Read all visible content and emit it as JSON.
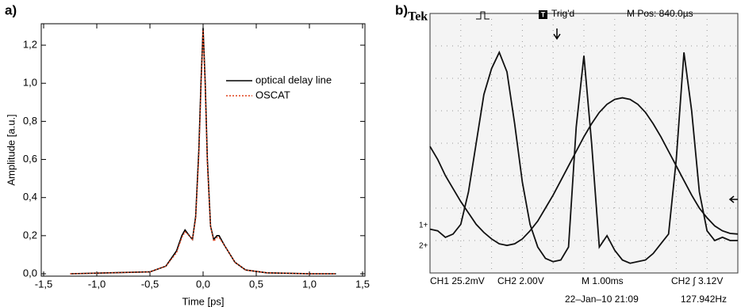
{
  "chart_data": [
    {
      "type": "line",
      "panel_label": "a)",
      "xlabel": "Time [ps]",
      "ylabel": "Amplitude [a.u.]",
      "xlim": [
        -1.5,
        1.5
      ],
      "ylim": [
        0,
        1.3
      ],
      "xticks": [
        {
          "value": -1.5,
          "label": "-1,5"
        },
        {
          "value": -1.0,
          "label": "-1,0"
        },
        {
          "value": -0.5,
          "label": "-0,5"
        },
        {
          "value": 0,
          "label": "0,0"
        },
        {
          "value": 0.5,
          "label": "0,5"
        },
        {
          "value": 1.0,
          "label": "1,0"
        },
        {
          "value": 1.5,
          "label": "1,5"
        }
      ],
      "yticks": [
        {
          "value": 0,
          "label": "0,0"
        },
        {
          "value": 0.2,
          "label": "0,2"
        },
        {
          "value": 0.4,
          "label": "0,4"
        },
        {
          "value": 0.6,
          "label": "0,6"
        },
        {
          "value": 0.8,
          "label": "0,8"
        },
        {
          "value": 1.0,
          "label": "1,0"
        },
        {
          "value": 1.2,
          "label": "1,2"
        }
      ],
      "legend": "upper right",
      "grid": false,
      "x": [
        -1.25,
        -0.5,
        -0.35,
        -0.25,
        -0.2,
        -0.17,
        -0.13,
        -0.1,
        -0.07,
        -0.04,
        -0.02,
        0,
        0.02,
        0.04,
        0.07,
        0.1,
        0.13,
        0.15,
        0.2,
        0.3,
        0.4,
        0.6,
        1.0,
        1.25
      ],
      "series": [
        {
          "name": "optical delay line",
          "color": "#000000",
          "style": "solid",
          "values": [
            0,
            0.01,
            0.04,
            0.12,
            0.2,
            0.23,
            0.2,
            0.18,
            0.3,
            0.65,
            1.0,
            1.29,
            1.0,
            0.6,
            0.25,
            0.18,
            0.2,
            0.2,
            0.15,
            0.06,
            0.02,
            0.005,
            0,
            0
          ]
        },
        {
          "name": "OSCAT",
          "color": "#e0401a",
          "style": "dotted",
          "values": [
            0,
            0.01,
            0.04,
            0.11,
            0.19,
            0.22,
            0.2,
            0.18,
            0.29,
            0.62,
            0.97,
            1.28,
            0.98,
            0.58,
            0.25,
            0.17,
            0.19,
            0.19,
            0.15,
            0.06,
            0.02,
            0.005,
            0,
            0
          ]
        }
      ]
    },
    {
      "type": "scope",
      "panel_label": "b)",
      "header": {
        "brand": "Tek",
        "trigger": "Trig'd",
        "position": "M Pos: 840.0µs"
      },
      "footer": [
        "CH1 25.2mV",
        "CH2 2.00V",
        "M 1.00ms",
        "CH2 ∫ 3.12V",
        "22–Jan–10 21:09",
        "127.942Hz"
      ],
      "channel_markers": [
        "1+",
        "2+"
      ],
      "xlim": [
        0,
        10
      ],
      "ylim": [
        0,
        8
      ],
      "grid": true,
      "x": [
        0,
        0.25,
        0.5,
        0.75,
        1,
        1.25,
        1.5,
        1.75,
        2,
        2.25,
        2.5,
        2.75,
        3,
        3.25,
        3.5,
        3.75,
        4,
        4.25,
        4.5,
        4.75,
        5,
        5.25,
        5.5,
        5.75,
        6,
        6.25,
        6.5,
        6.75,
        7,
        7.25,
        7.5,
        7.75,
        8,
        8.25,
        8.5,
        8.75,
        9,
        9.25,
        9.5,
        9.75,
        10
      ],
      "series": [
        {
          "color": "#111111",
          "values": [
            1.35,
            1.3,
            1.1,
            1.2,
            1.5,
            2.5,
            4.0,
            5.5,
            6.3,
            6.8,
            6.2,
            4.6,
            2.8,
            1.5,
            0.8,
            0.45,
            0.35,
            0.4,
            0.8,
            4.5,
            6.7,
            4.0,
            0.8,
            1.15,
            0.7,
            0.4,
            0.3,
            0.35,
            0.4,
            0.6,
            0.9,
            1.2,
            3.5,
            6.8,
            5.0,
            2.5,
            1.3,
            1.0,
            1.1,
            1.0,
            1.0
          ]
        },
        {
          "color": "#111111",
          "values": [
            3.9,
            3.5,
            3.0,
            2.6,
            2.2,
            1.85,
            1.5,
            1.25,
            1.05,
            0.9,
            0.85,
            0.9,
            1.05,
            1.3,
            1.6,
            2.0,
            2.4,
            2.85,
            3.3,
            3.75,
            4.2,
            4.6,
            4.95,
            5.2,
            5.35,
            5.4,
            5.35,
            5.2,
            4.95,
            4.6,
            4.2,
            3.75,
            3.3,
            2.85,
            2.4,
            2.0,
            1.7,
            1.45,
            1.3,
            1.22,
            1.2
          ]
        }
      ]
    }
  ]
}
